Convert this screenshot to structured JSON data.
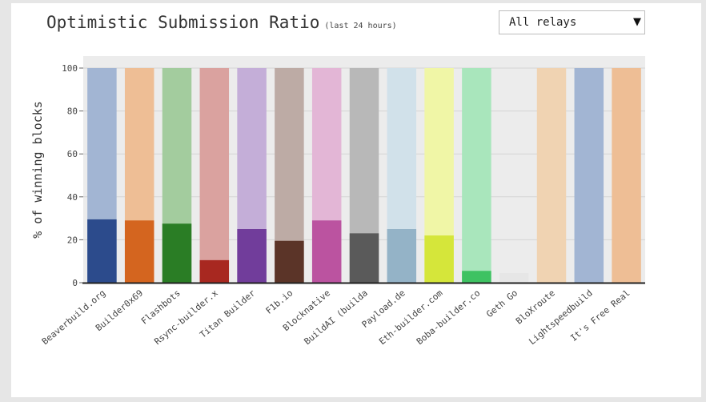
{
  "header": {
    "title": "Optimistic Submission Ratio",
    "subtitle": "(last 24 hours)"
  },
  "relay_select": {
    "selected": "All relays",
    "chevron_icon": "triangle-down-icon"
  },
  "chart_data": {
    "type": "bar",
    "stacked": true,
    "ylabel": "% of winning blocks",
    "xlabel": "",
    "ylim": [
      0,
      100
    ],
    "yticks": [
      0,
      20,
      40,
      60,
      80,
      100
    ],
    "grid": true,
    "categories": [
      "Beaverbuild.org",
      "Builder0x69",
      "Flashbots",
      "Rsync-builder.x",
      "Titan Builder",
      "F1b.io",
      "Blocknative",
      "BuildAI (builda",
      "Payload.de",
      "Eth-builder.com",
      "Boba-builder.co",
      "Geth Go",
      "BloXroute",
      "Lightspeedbuild",
      "It's Free Real"
    ],
    "totals": [
      100,
      100,
      100,
      100,
      100,
      100,
      100,
      100,
      100,
      100,
      100,
      4.5,
      100,
      100,
      100
    ],
    "optimistic": [
      29.5,
      29,
      27.5,
      10.5,
      25,
      19.5,
      29,
      23,
      25,
      22,
      5.5,
      0,
      0,
      0,
      0
    ],
    "colors": [
      "#2c4b8c",
      "#d4651f",
      "#2a7d25",
      "#a82820",
      "#713d9b",
      "#5b3428",
      "#bb53a0",
      "#5a5a5a",
      "#94b3c7",
      "#d5e63a",
      "#3ec262",
      "#cccccc",
      "#f0d3b2",
      "#a2b5d3",
      "#eebe95"
    ],
    "light_colors": [
      "#a2b5d3",
      "#eebe95",
      "#a3cc9e",
      "#daa29f",
      "#c4aed8",
      "#bdaba5",
      "#e3b6d6",
      "#b8b8b8",
      "#d1e1ea",
      "#f0f6a6",
      "#a9e6bc",
      "#e6e6e6",
      "#f0d3b2",
      "#a2b5d3",
      "#eebe95"
    ],
    "plot_background": "#ececec"
  }
}
